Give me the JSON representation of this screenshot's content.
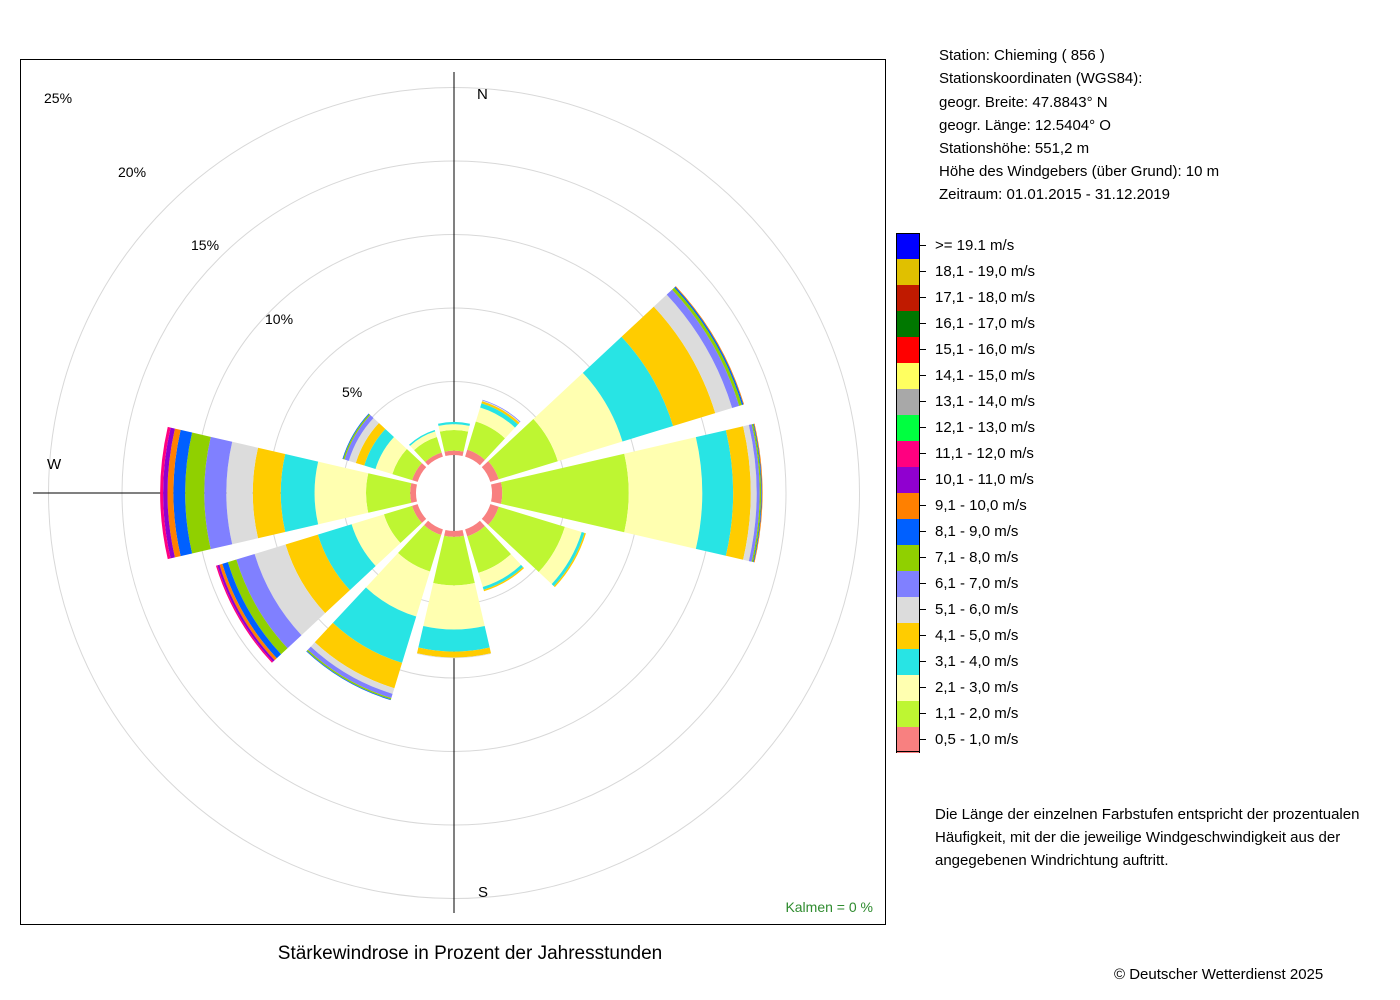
{
  "station": {
    "line1": "Station:  Chieming  ( 856 )",
    "line2": "Stationskoordinaten (WGS84):",
    "line3": "geogr. Breite: 47.8843° N",
    "line4": "geogr. Länge: 12.5404° O",
    "line5": "Stationshöhe: 551,2 m",
    "line6": "Höhe des Windgebers (über Grund): 10 m",
    "line7": "Zeitraum: 01.01.2015 - 31.12.2019"
  },
  "legend": {
    "items": [
      {
        "label": ">= 19.1 m/s",
        "color": "#0000ff"
      },
      {
        "label": "18,1 - 19,0 m/s",
        "color": "#e0c000"
      },
      {
        "label": "17,1 - 18,0 m/s",
        "color": "#c01a00"
      },
      {
        "label": "16,1 - 17,0 m/s",
        "color": "#007800"
      },
      {
        "label": "15,1 - 16,0 m/s",
        "color": "#ff0000"
      },
      {
        "label": "14,1 - 15,0 m/s",
        "color": "#ffff60"
      },
      {
        "label": "13,1 - 14,0 m/s",
        "color": "#a8a8a8"
      },
      {
        "label": "12,1 - 13,0 m/s",
        "color": "#00ff40"
      },
      {
        "label": "11,1 - 12,0 m/s",
        "color": "#ff0080"
      },
      {
        "label": "10,1 - 11,0 m/s",
        "color": "#9000d0"
      },
      {
        "label": "9,1 - 10,0 m/s",
        "color": "#ff8000"
      },
      {
        "label": "8,1 - 9,0 m/s",
        "color": "#0060ff"
      },
      {
        "label": "7,1 - 8,0 m/s",
        "color": "#90d000"
      },
      {
        "label": "6,1 - 7,0 m/s",
        "color": "#8080ff"
      },
      {
        "label": "5,1 - 6,0 m/s",
        "color": "#dcdcdc"
      },
      {
        "label": "4,1 - 5,0 m/s",
        "color": "#ffcc00"
      },
      {
        "label": "3,1 - 4,0 m/s",
        "color": "#28e4e4"
      },
      {
        "label": "2,1 - 3,0 m/s",
        "color": "#ffffb0"
      },
      {
        "label": "1,1 - 2,0 m/s",
        "color": "#bef632"
      },
      {
        "label": "0,5 - 1,0 m/s",
        "color": "#f88080"
      }
    ]
  },
  "note": {
    "line1": "Die Länge der einzelnen Farbstufen entspricht der prozentualen",
    "line2": "Häufigkeit, mit der die jeweilige Windgeschwindigkeit aus der",
    "line3": "angegebenen Windrichtung auftritt."
  },
  "plot": {
    "north": "N",
    "south": "S",
    "west": "W",
    "calm": "Kalmen  =  0 %",
    "ring_labels": [
      "5%",
      "10%",
      "15%",
      "20%",
      "25%"
    ]
  },
  "title": "Stärkewindrose in Prozent der Jahresstunden",
  "copyright": "© Deutscher Wetterdienst  2025",
  "chart_data": {
    "type": "windrose",
    "unit": "%",
    "rings": [
      5,
      10,
      15,
      20,
      25
    ],
    "speed_classes": [
      "0,5 - 1,0 m/s",
      "1,1 - 2,0 m/s",
      "2,1 - 3,0 m/s",
      "3,1 - 4,0 m/s",
      "4,1 - 5,0 m/s",
      "5,1 - 6,0 m/s",
      "6,1 - 7,0 m/s",
      "7,1 - 8,0 m/s",
      "8,1 - 9,0 m/s",
      "9,1 - 10,0 m/s",
      "10,1 - 11,0 m/s",
      "11,1 - 12,0 m/s",
      "12,1 - 13,0 m/s",
      "13,1 - 14,0 m/s",
      "14,1 - 15,0 m/s",
      "15,1 - 16,0 m/s",
      "16,1 - 17,0 m/s",
      "17,1 - 18,0 m/s",
      "18,1 - 19,0 m/s",
      ">= 19.1 m/s"
    ],
    "colors": [
      "#f88080",
      "#bef632",
      "#ffffb0",
      "#28e4e4",
      "#ffcc00",
      "#dcdcdc",
      "#8080ff",
      "#90d000",
      "#0060ff",
      "#ff8000",
      "#9000d0",
      "#ff0080",
      "#00ff40",
      "#a8a8a8",
      "#ffff60",
      "#ff0000",
      "#007800",
      "#c01a00",
      "#e0c000",
      "#0000ff"
    ],
    "directions": [
      {
        "deg": 0,
        "values": [
          0.3,
          1.4,
          0.4,
          0.15
        ]
      },
      {
        "deg": 30,
        "values": [
          0.5,
          2.0,
          1.0,
          0.3,
          0.15,
          0.05,
          0.05
        ]
      },
      {
        "deg": 60,
        "values": [
          0.6,
          4.2,
          4.6,
          3.6,
          3.0,
          1.2,
          0.5,
          0.2,
          0.1,
          0.05
        ]
      },
      {
        "deg": 90,
        "values": [
          0.7,
          8.6,
          5.0,
          2.1,
          1.2,
          0.4,
          0.2,
          0.1,
          0.05,
          0.05
        ]
      },
      {
        "deg": 120,
        "values": [
          0.6,
          4.7,
          1.2,
          0.2,
          0.1
        ]
      },
      {
        "deg": 150,
        "values": [
          0.5,
          2.6,
          1.0,
          0.2,
          0.1
        ]
      },
      {
        "deg": 180,
        "values": [
          0.4,
          3.3,
          3.0,
          1.5,
          0.4,
          0.05
        ]
      },
      {
        "deg": 210,
        "values": [
          0.4,
          2.6,
          3.2,
          3.3,
          1.8,
          0.4,
          0.3,
          0.1,
          0.05
        ]
      },
      {
        "deg": 240,
        "values": [
          0.4,
          2.0,
          2.3,
          2.4,
          2.3,
          2.2,
          1.3,
          0.6,
          0.4,
          0.2,
          0.15,
          0.1
        ]
      },
      {
        "deg": 270,
        "values": [
          0.4,
          3.0,
          3.5,
          2.3,
          1.9,
          1.8,
          1.5,
          1.3,
          0.8,
          0.4,
          0.3,
          0.2
        ]
      },
      {
        "deg": 300,
        "values": [
          0.4,
          1.4,
          1.2,
          0.8,
          0.6,
          0.5,
          0.3,
          0.1,
          0.05
        ]
      },
      {
        "deg": 330,
        "values": [
          0.3,
          1.1,
          0.4,
          0.1
        ]
      }
    ]
  }
}
